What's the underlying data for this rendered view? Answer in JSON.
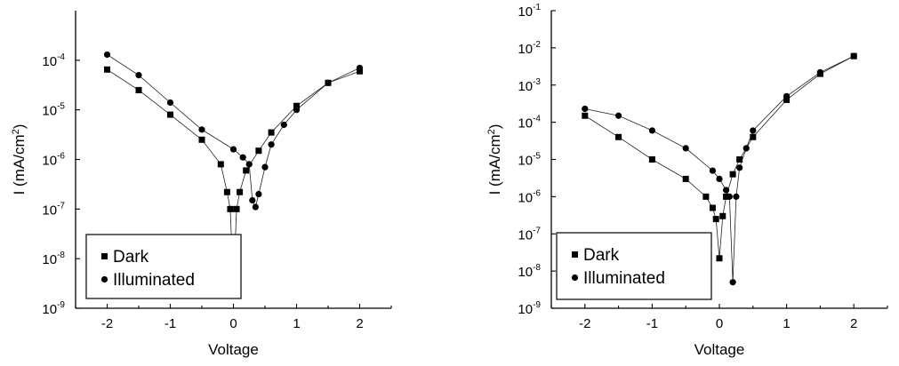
{
  "chart_data": [
    {
      "type": "scatter",
      "title": "",
      "xlabel": "Voltage",
      "ylabel": "I (mA/cm²)",
      "ylabel_parts": {
        "pre": "I (mA/cm",
        "sup": "2",
        "post": ")"
      },
      "xlim": [
        -2.5,
        2.5
      ],
      "ylim": [
        1e-09,
        0.001
      ],
      "yscale": "log",
      "xticks": [
        -2,
        -1,
        0,
        1,
        2
      ],
      "xtick_labels": [
        "-2",
        "-1",
        "0",
        "1",
        "2"
      ],
      "yticks_exp": [
        -9,
        -8,
        -7,
        -6,
        -5,
        -4
      ],
      "ytick_labels": [
        "10",
        "10",
        "10",
        "10",
        "10",
        "10"
      ],
      "ytick_label_exps": [
        "-9",
        "-8",
        "-7",
        "-6",
        "-5",
        "-4"
      ],
      "legend": {
        "placement": "lower-left",
        "entries": [
          "Dark",
          "Illuminated"
        ]
      },
      "series": [
        {
          "name": "Dark",
          "marker": "square",
          "x": [
            -2.0,
            -1.5,
            -1.0,
            -0.5,
            -0.2,
            -0.1,
            -0.05,
            0.0,
            0.05,
            0.1,
            0.2,
            0.4,
            0.6,
            1.0,
            1.5,
            2.0
          ],
          "y": [
            6.5e-05,
            2.5e-05,
            8e-06,
            2.5e-06,
            8e-07,
            2.2e-07,
            1e-07,
            2.8e-09,
            1e-07,
            2.2e-07,
            6e-07,
            1.5e-06,
            3.5e-06,
            1.2e-05,
            3.5e-05,
            6e-05
          ]
        },
        {
          "name": "Illuminated",
          "marker": "circle",
          "x": [
            -2.0,
            -1.5,
            -1.0,
            -0.5,
            0.0,
            0.15,
            0.25,
            0.3,
            0.35,
            0.4,
            0.5,
            0.6,
            0.8,
            1.0,
            1.5,
            2.0
          ],
          "y": [
            0.00013,
            5e-05,
            1.4e-05,
            4e-06,
            1.6e-06,
            1.1e-06,
            8e-07,
            1.5e-07,
            1.1e-07,
            2e-07,
            7e-07,
            2e-06,
            5e-06,
            1e-05,
            3.5e-05,
            7e-05
          ]
        }
      ]
    },
    {
      "type": "scatter",
      "title": "",
      "xlabel": "Voltage",
      "ylabel": "I (mA/cm²)",
      "ylabel_parts": {
        "pre": "I (mA/cm",
        "sup": "2",
        "post": ")"
      },
      "xlim": [
        -2.5,
        2.5
      ],
      "ylim": [
        1e-09,
        0.1
      ],
      "yscale": "log",
      "xticks": [
        -2,
        -1,
        0,
        1,
        2
      ],
      "xtick_labels": [
        "-2",
        "-1",
        "0",
        "1",
        "2"
      ],
      "yticks_exp": [
        -9,
        -8,
        -7,
        -6,
        -5,
        -4,
        -3,
        -2,
        -1
      ],
      "ytick_labels": [
        "10",
        "10",
        "10",
        "10",
        "10",
        "10",
        "10",
        "10",
        "10"
      ],
      "ytick_label_exps": [
        "-9",
        "-8",
        "-7",
        "-6",
        "-5",
        "-4",
        "-3",
        "-2",
        "-1"
      ],
      "legend": {
        "placement": "lower-left",
        "entries": [
          "Dark",
          "Illuminated"
        ]
      },
      "series": [
        {
          "name": "Dark",
          "marker": "square",
          "x": [
            -2.0,
            -1.5,
            -1.0,
            -0.5,
            -0.2,
            -0.1,
            -0.05,
            0.0,
            0.05,
            0.1,
            0.2,
            0.3,
            0.5,
            1.0,
            1.5,
            2.0
          ],
          "y": [
            0.00015,
            4e-05,
            1e-05,
            3e-06,
            1e-06,
            5e-07,
            2.5e-07,
            2.2e-08,
            3e-07,
            1e-06,
            4e-06,
            1e-05,
            4e-05,
            0.0004,
            0.002,
            0.006
          ]
        },
        {
          "name": "Illuminated",
          "marker": "circle",
          "x": [
            -2.0,
            -1.5,
            -1.0,
            -0.5,
            -0.1,
            0.0,
            0.1,
            0.15,
            0.2,
            0.25,
            0.3,
            0.4,
            0.5,
            1.0,
            1.5,
            2.0
          ],
          "y": [
            0.00023,
            0.00015,
            6e-05,
            2e-05,
            5e-06,
            3e-06,
            1.5e-06,
            1e-06,
            5e-09,
            1e-06,
            6e-06,
            2e-05,
            6e-05,
            0.0005,
            0.0022,
            0.006
          ]
        }
      ]
    }
  ]
}
